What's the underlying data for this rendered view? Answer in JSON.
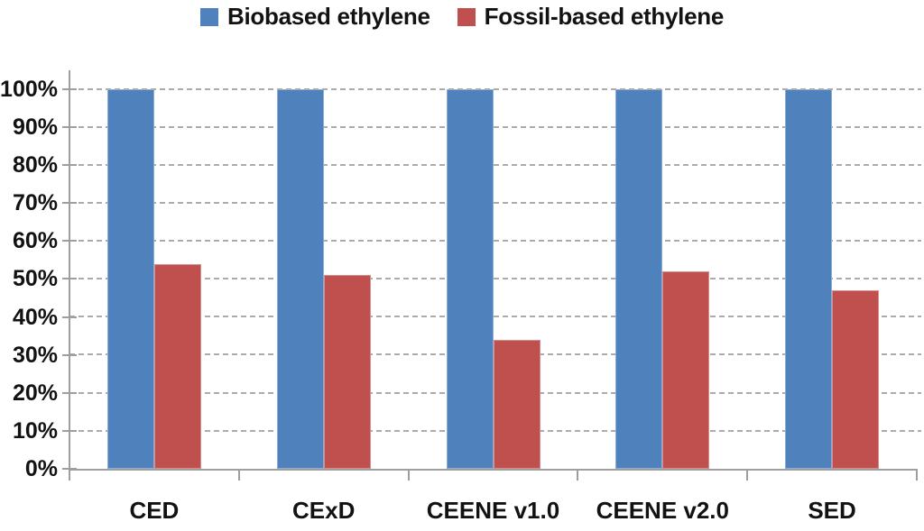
{
  "chart_data": {
    "type": "bar",
    "title": "",
    "categories": [
      "CED",
      "CExD",
      "CEENE v1.0",
      "CEENE v2.0",
      "SED"
    ],
    "series": [
      {
        "name": "Biobased ethylene",
        "color": "#4F81BD",
        "values": [
          100,
          100,
          100,
          100,
          100
        ]
      },
      {
        "name": "Fossil-based ethylene",
        "color": "#C0504D",
        "values": [
          54,
          51,
          34,
          52,
          47
        ]
      }
    ],
    "xlabel": "",
    "ylabel": "",
    "ylim": [
      0,
      105
    ],
    "yticks": [
      0,
      10,
      20,
      30,
      40,
      50,
      60,
      70,
      80,
      90,
      100
    ],
    "ytick_labels": [
      "0%",
      "10%",
      "20%",
      "30%",
      "40%",
      "50%",
      "60%",
      "70%",
      "80%",
      "90%",
      "100%"
    ],
    "grid": "horizontal-dashed",
    "legend_position": "top-center"
  },
  "styles": {
    "grid_color": "#ABABAB",
    "axis_color": "#9E9E9E",
    "text_color": "#121212",
    "background": "#FFFFFF"
  }
}
